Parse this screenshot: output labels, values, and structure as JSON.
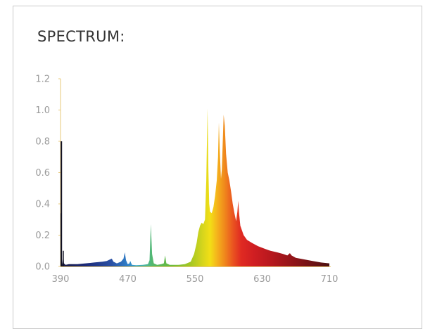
{
  "title": "SPECTRUM:",
  "chart_data": {
    "type": "area",
    "title": "SPECTRUM:",
    "xlabel": "",
    "ylabel": "",
    "xlim": [
      390,
      710
    ],
    "ylim": [
      0,
      1.2
    ],
    "x_ticks": [
      "390",
      "470",
      "550",
      "630",
      "710"
    ],
    "y_ticks": [
      "0.0",
      "0.2",
      "0.4",
      "0.6",
      "0.8",
      "1.0",
      "1.2"
    ],
    "grid": false,
    "legend": "none",
    "fill": "wavelength-colored spectrum",
    "points": [
      [
        390,
        0.02
      ],
      [
        390.6,
        0.34
      ],
      [
        391,
        0.8
      ],
      [
        391.6,
        0.05
      ],
      [
        392.5,
        0.01
      ],
      [
        393.3,
        0.1
      ],
      [
        394,
        0.02
      ],
      [
        396,
        0.01
      ],
      [
        400,
        0.015
      ],
      [
        410,
        0.015
      ],
      [
        420,
        0.02
      ],
      [
        430,
        0.025
      ],
      [
        440,
        0.03
      ],
      [
        445,
        0.035
      ],
      [
        449,
        0.045
      ],
      [
        451,
        0.05
      ],
      [
        453,
        0.03
      ],
      [
        457,
        0.02
      ],
      [
        462,
        0.03
      ],
      [
        465,
        0.05
      ],
      [
        466.5,
        0.09
      ],
      [
        468,
        0.04
      ],
      [
        470,
        0.015
      ],
      [
        472,
        0.02
      ],
      [
        473,
        0.035
      ],
      [
        475,
        0.01
      ],
      [
        480,
        0.008
      ],
      [
        488,
        0.01
      ],
      [
        494,
        0.015
      ],
      [
        496,
        0.04
      ],
      [
        497.5,
        0.27
      ],
      [
        499,
        0.08
      ],
      [
        501,
        0.02
      ],
      [
        505,
        0.01
      ],
      [
        510,
        0.015
      ],
      [
        513,
        0.02
      ],
      [
        514.5,
        0.07
      ],
      [
        516,
        0.02
      ],
      [
        520,
        0.01
      ],
      [
        530,
        0.01
      ],
      [
        538,
        0.015
      ],
      [
        545,
        0.03
      ],
      [
        549,
        0.08
      ],
      [
        552,
        0.15
      ],
      [
        554,
        0.22
      ],
      [
        556,
        0.26
      ],
      [
        558,
        0.28
      ],
      [
        560,
        0.27
      ],
      [
        562,
        0.3
      ],
      [
        563.5,
        0.55
      ],
      [
        565,
        1.01
      ],
      [
        566,
        0.62
      ],
      [
        567,
        0.4
      ],
      [
        568,
        0.35
      ],
      [
        570,
        0.34
      ],
      [
        572,
        0.38
      ],
      [
        574,
        0.45
      ],
      [
        576,
        0.55
      ],
      [
        577.5,
        0.7
      ],
      [
        578.5,
        0.92
      ],
      [
        579.5,
        0.75
      ],
      [
        581,
        0.56
      ],
      [
        582,
        0.62
      ],
      [
        583,
        0.78
      ],
      [
        584.2,
        0.97
      ],
      [
        585.5,
        0.9
      ],
      [
        587,
        0.72
      ],
      [
        589,
        0.6
      ],
      [
        591,
        0.55
      ],
      [
        593,
        0.48
      ],
      [
        595,
        0.4
      ],
      [
        597,
        0.34
      ],
      [
        599,
        0.29
      ],
      [
        600.5,
        0.35
      ],
      [
        601.5,
        0.42
      ],
      [
        602.5,
        0.34
      ],
      [
        604,
        0.26
      ],
      [
        608,
        0.2
      ],
      [
        612,
        0.17
      ],
      [
        618,
        0.15
      ],
      [
        625,
        0.13
      ],
      [
        632,
        0.115
      ],
      [
        640,
        0.1
      ],
      [
        648,
        0.09
      ],
      [
        655,
        0.08
      ],
      [
        660,
        0.07
      ],
      [
        663,
        0.085
      ],
      [
        665,
        0.07
      ],
      [
        670,
        0.055
      ],
      [
        680,
        0.045
      ],
      [
        690,
        0.035
      ],
      [
        700,
        0.025
      ],
      [
        710,
        0.02
      ]
    ]
  }
}
